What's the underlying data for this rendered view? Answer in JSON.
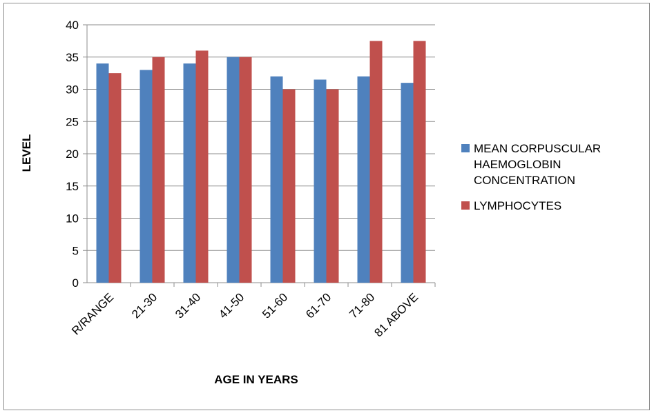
{
  "chart_data": {
    "type": "bar",
    "title": "",
    "xlabel": "AGE IN YEARS",
    "ylabel": "LEVEL",
    "ylim": [
      0,
      40
    ],
    "yticks": [
      0,
      5,
      10,
      15,
      20,
      25,
      30,
      35,
      40
    ],
    "grid": true,
    "legend_position": "right",
    "categories": [
      "R/RANGE",
      "21-30",
      "31-40",
      "41-50",
      "51-60",
      "61-70",
      "71-80",
      "81 ABOVE"
    ],
    "series": [
      {
        "name": "MEAN CORPUSCULAR HAEMOGLOBIN CONCENTRATION",
        "color": "#4f81bd",
        "values": [
          34,
          33,
          34,
          35,
          32,
          31.5,
          32,
          31
        ]
      },
      {
        "name": "LYMPHOCYTES",
        "color": "#c0504d",
        "values": [
          32.5,
          35,
          36,
          35,
          30,
          30,
          37.5,
          37.5
        ]
      }
    ]
  }
}
